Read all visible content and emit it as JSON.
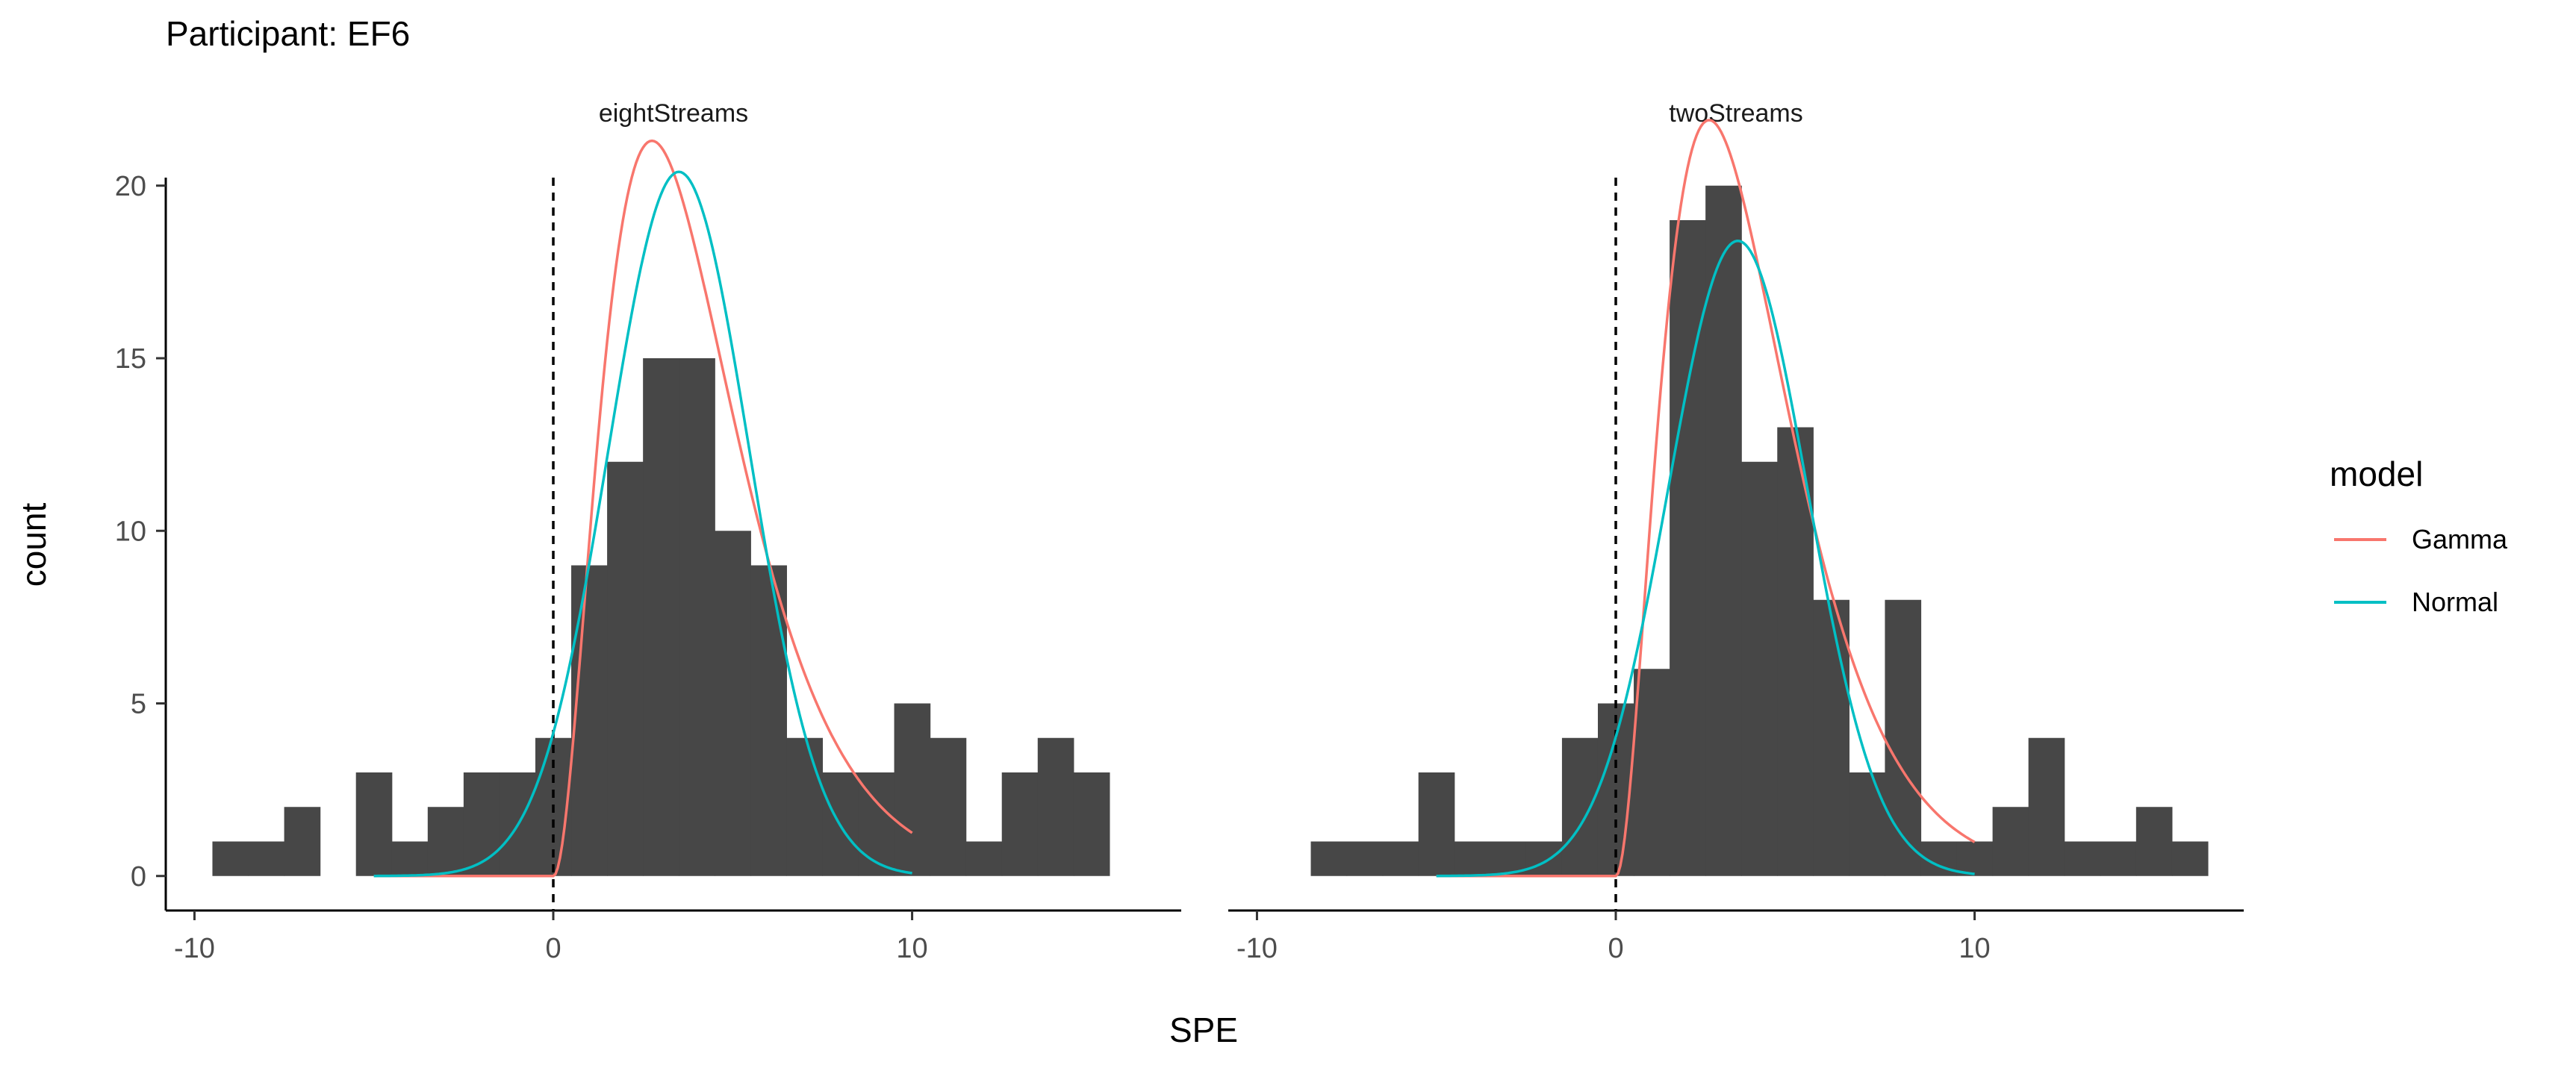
{
  "chart_data": {
    "type": "bar",
    "title": "Participant: EF6",
    "xlabel": "SPE",
    "ylabel": "count",
    "bin_width": 1,
    "xlim": [
      -10.8,
      17.5
    ],
    "ylim": [
      -1,
      23
    ],
    "x_ticks": [
      -10,
      0,
      10
    ],
    "x_tick_labels": [
      "-10",
      "0",
      "10"
    ],
    "y_ticks": [
      0,
      5,
      10,
      15,
      20
    ],
    "y_tick_labels": [
      "0",
      "5",
      "10",
      "15",
      "20"
    ],
    "reference_line": {
      "x": 0,
      "style": "dashed"
    },
    "grid": false,
    "legend": {
      "title": "model",
      "position": "right",
      "entries": [
        {
          "name": "Gamma",
          "color": "#F8766D"
        },
        {
          "name": "Normal",
          "color": "#00BFC4"
        }
      ]
    },
    "facets": [
      {
        "label": "eightStreams",
        "bin_centers": [
          -9,
          -8,
          -7,
          -6,
          -5,
          -4,
          -3,
          -2,
          -1,
          0,
          1,
          2,
          3,
          4,
          5,
          6,
          7,
          8,
          9,
          10,
          11,
          12,
          13,
          14,
          15
        ],
        "counts": [
          1,
          1,
          2,
          0,
          3,
          1,
          2,
          3,
          3,
          4,
          9,
          12,
          15,
          15,
          10,
          9,
          4,
          3,
          3,
          5,
          4,
          1,
          3,
          4,
          3
        ],
        "curves": [
          {
            "name": "Gamma",
            "color": "#F8766D",
            "kind": "gamma",
            "peak": 21.3,
            "mode": 2.75,
            "sd": 2.3,
            "x_range": [
              -5,
              10
            ]
          },
          {
            "name": "Normal",
            "color": "#00BFC4",
            "kind": "normal",
            "peak": 20.4,
            "mean": 3.5,
            "sd": 1.96,
            "x_range": [
              -5,
              10
            ]
          }
        ]
      },
      {
        "label": "twoStreams",
        "bin_centers": [
          -8,
          -7,
          -6,
          -5,
          -4,
          -3,
          -2,
          -1,
          0,
          1,
          2,
          3,
          4,
          5,
          6,
          7,
          8,
          9,
          10,
          11,
          12,
          13,
          14,
          15,
          16
        ],
        "counts": [
          1,
          1,
          1,
          3,
          1,
          1,
          1,
          4,
          5,
          6,
          19,
          20,
          12,
          13,
          8,
          3,
          8,
          1,
          1,
          2,
          4,
          1,
          1,
          2,
          1
        ],
        "curves": [
          {
            "name": "Gamma",
            "color": "#F8766D",
            "kind": "gamma",
            "peak": 21.9,
            "mode": 2.6,
            "sd": 2.2,
            "x_range": [
              -5,
              10
            ]
          },
          {
            "name": "Normal",
            "color": "#00BFC4",
            "kind": "normal",
            "peak": 18.4,
            "mean": 3.4,
            "sd": 1.95,
            "x_range": [
              -5,
              10
            ]
          }
        ]
      }
    ]
  }
}
